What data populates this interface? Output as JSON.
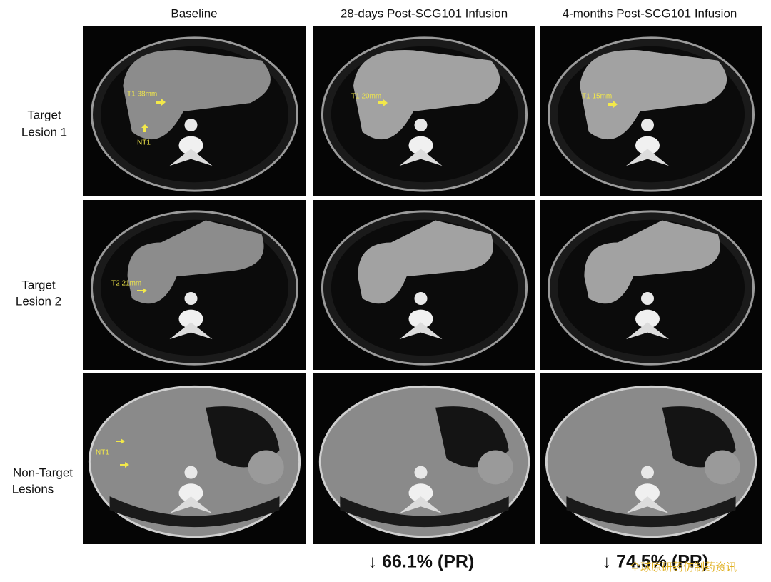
{
  "columns": [
    "Baseline",
    "28-days Post-SCG101 Infusion",
    "4-months Post-SCG101 Infusion"
  ],
  "rows": [
    [
      "Target",
      "Lesion 1"
    ],
    [
      "Target",
      "Lesion 2"
    ],
    [
      "Non-Target",
      "Lesions"
    ]
  ],
  "annotations": [
    "T1 38mm",
    "NT1",
    "T1 20mm",
    "T1 15mm",
    "T2 21mm",
    "NT1"
  ],
  "responses": [
    "↓ 66.1% (PR)",
    "↓ 74.5% (PR)"
  ],
  "watermark": "全球原研药仿制药资讯"
}
